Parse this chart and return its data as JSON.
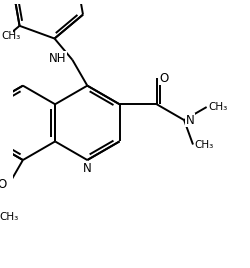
{
  "background_color": "#ffffff",
  "line_color": "#000000",
  "lw": 1.4,
  "figsize": [
    2.5,
    2.68
  ],
  "dpi": 100,
  "xlim": [
    -0.5,
    5.8
  ],
  "ylim": [
    -3.8,
    3.2
  ]
}
